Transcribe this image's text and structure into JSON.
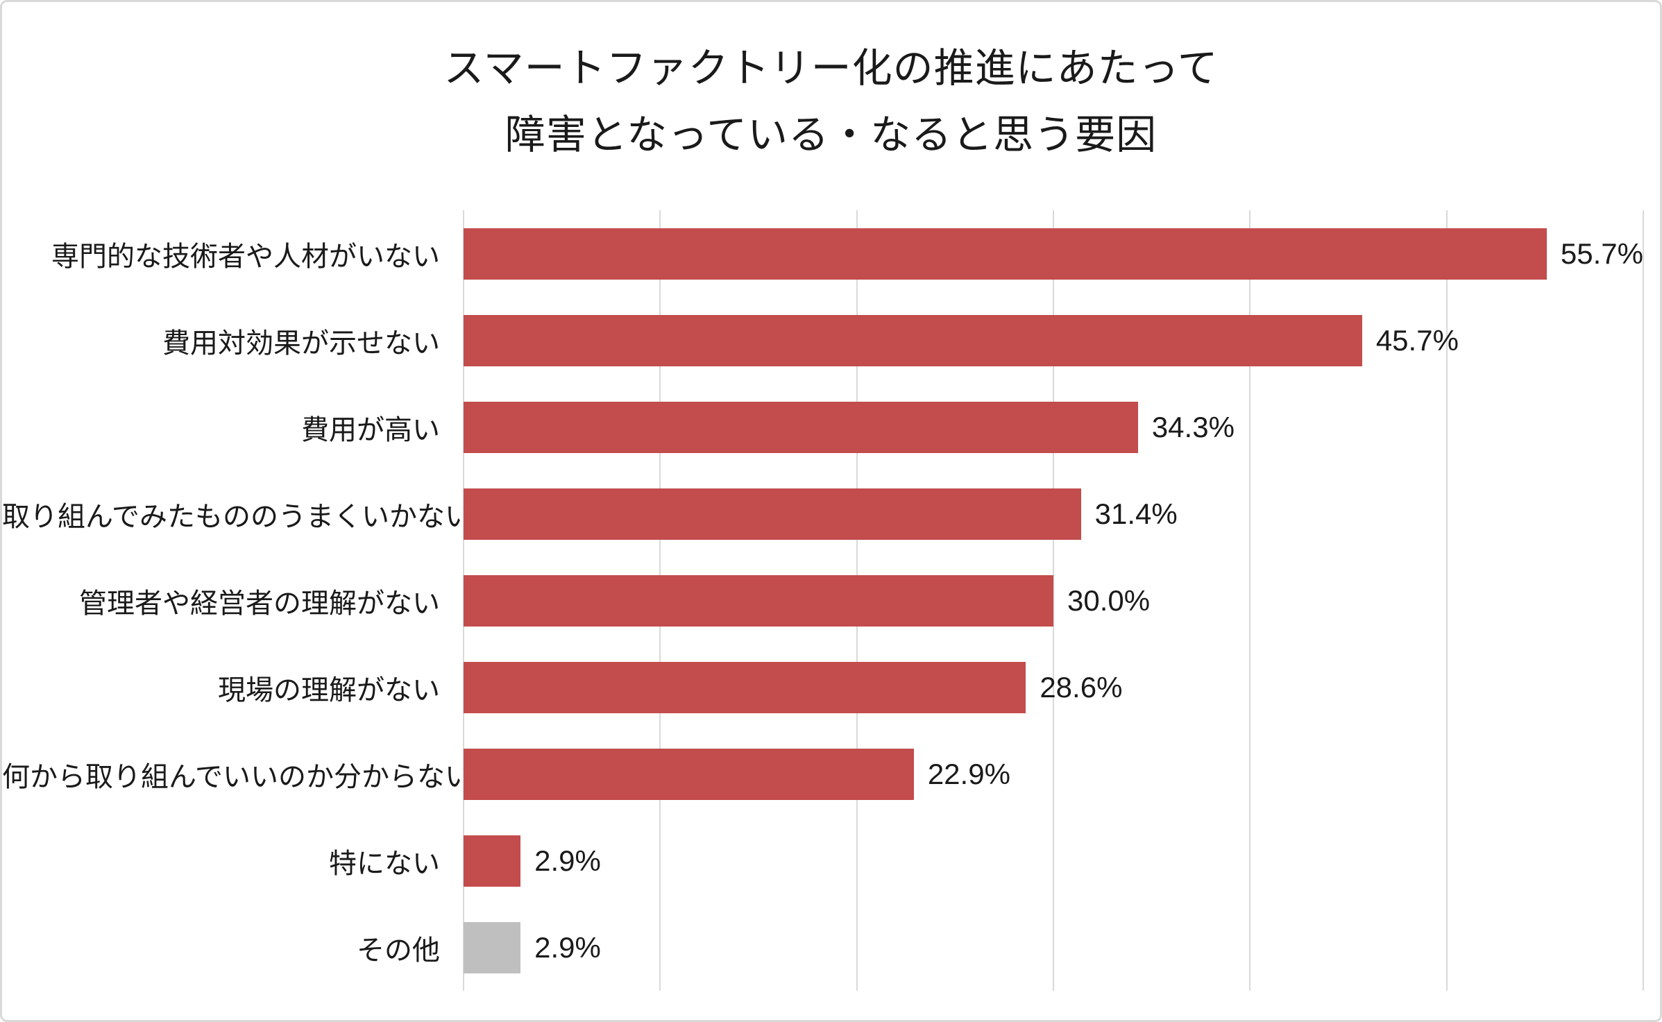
{
  "chart": {
    "title_lines": [
      "スマートファクトリー化の推進にあたって",
      "障害となっている・なると思う要因"
    ]
  },
  "chart_data": {
    "type": "bar",
    "orientation": "horizontal",
    "title": "スマートファクトリー化の推進にあたって障害となっている・なると思う要因",
    "categories": [
      "専門的な技術者や人材がいない",
      "費用対効果が示せない",
      "費用が高い",
      "取り組んでみたもののうまくいかない",
      "管理者や経営者の理解がない",
      "現場の理解がない",
      "何から取り組んでいいのか分からない",
      "特にない",
      "その他"
    ],
    "values": [
      55.7,
      45.7,
      34.3,
      31.4,
      30.0,
      28.6,
      22.9,
      2.9,
      2.9
    ],
    "value_labels": [
      "55.7%",
      "45.7%",
      "34.3%",
      "31.4%",
      "30.0%",
      "28.6%",
      "22.9%",
      "2.9%",
      "2.9%"
    ],
    "bar_colors": [
      "#c34c4c",
      "#c34c4c",
      "#c34c4c",
      "#c34c4c",
      "#c34c4c",
      "#c34c4c",
      "#c34c4c",
      "#c34c4c",
      "#bfbfbf"
    ],
    "xlabel": "",
    "ylabel": "",
    "xlim": [
      0,
      60
    ],
    "gridline_interval": 10,
    "grid": true,
    "legend": false
  },
  "colors": {
    "bar_main": "#c34c4c",
    "bar_other": "#bfbfbf",
    "gridline": "#d9d9d9",
    "text": "#1a1a1a",
    "frame_border": "#d9d9d9",
    "background": "#ffffff"
  }
}
